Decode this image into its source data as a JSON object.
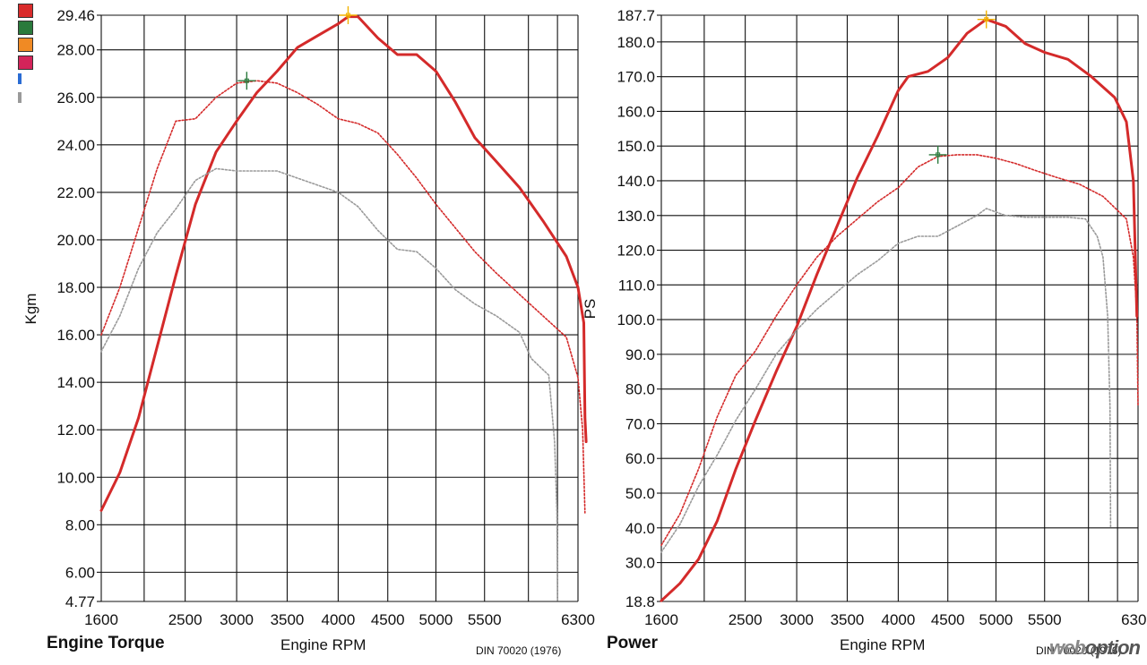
{
  "legend": [
    {
      "color": "#d92b2b"
    },
    {
      "color": "#2a7a3c"
    },
    {
      "color": "#f08a24"
    },
    {
      "color": "#d4245a"
    }
  ],
  "legend_mini": [
    {
      "color": "#2a6cd4"
    },
    {
      "color": "#9a9a9a"
    }
  ],
  "captions": {
    "torque": "Engine Torque",
    "power": "Power",
    "rpm_left": "Engine RPM",
    "rpm_right": "Engine RPM",
    "din_left": "DIN 70020 (1976)",
    "din_right": "DIN 70020 (1976)"
  },
  "watermark": {
    "a": "web",
    "b": "option"
  },
  "chart_data": [
    {
      "type": "line",
      "ylabel": "Kgm",
      "xlabel": "Engine RPM",
      "xlim": [
        1600,
        6300
      ],
      "ylim": [
        4.77,
        29.46
      ],
      "x_ticks": [
        1600,
        2500,
        3000,
        3500,
        4000,
        4500,
        5000,
        5500,
        6300
      ],
      "y_ticks": [
        {
          "v": 29.46,
          "label": "29.46"
        },
        {
          "v": 28.0,
          "label": "28.00"
        },
        {
          "v": 26.0,
          "label": "26.00"
        },
        {
          "v": 24.0,
          "label": "24.00"
        },
        {
          "v": 22.0,
          "label": "22.00"
        },
        {
          "v": 20.0,
          "label": "20.00"
        },
        {
          "v": 18.0,
          "label": "18.00"
        },
        {
          "v": 16.0,
          "label": "16.00"
        },
        {
          "v": 14.0,
          "label": "14.00"
        },
        {
          "v": 12.0,
          "label": "12.00"
        },
        {
          "v": 10.0,
          "label": "10.00"
        },
        {
          "v": 8.0,
          "label": "8.00"
        },
        {
          "v": 6.0,
          "label": "6.00"
        },
        {
          "v": 4.77,
          "label": "4.77"
        }
      ],
      "grid": true,
      "series": [
        {
          "style": "solid",
          "color": "#d42a2a",
          "points": [
            [
              1600,
              8.6
            ],
            [
              1800,
              10.2
            ],
            [
              2000,
              12.5
            ],
            [
              2200,
              15.5
            ],
            [
              2400,
              18.5
            ],
            [
              2600,
              21.5
            ],
            [
              2800,
              23.7
            ],
            [
              3000,
              25.0
            ],
            [
              3200,
              26.2
            ],
            [
              3400,
              27.1
            ],
            [
              3600,
              28.1
            ],
            [
              3800,
              28.6
            ],
            [
              4000,
              29.1
            ],
            [
              4100,
              29.4
            ],
            [
              4200,
              29.4
            ],
            [
              4400,
              28.5
            ],
            [
              4600,
              27.8
            ],
            [
              4800,
              27.8
            ],
            [
              5000,
              27.1
            ],
            [
              5200,
              25.8
            ],
            [
              5400,
              24.3
            ],
            [
              5600,
              23.3
            ],
            [
              5800,
              22.2
            ],
            [
              6000,
              20.8
            ],
            [
              6200,
              19.3
            ],
            [
              6300,
              18.0
            ],
            [
              6350,
              16.5
            ],
            [
              6360,
              12.5
            ],
            [
              6370,
              11.5
            ]
          ]
        },
        {
          "style": "dotted",
          "color": "#d42a2a",
          "points": [
            [
              1600,
              16.0
            ],
            [
              1800,
              18.0
            ],
            [
              2000,
              20.5
            ],
            [
              2200,
              23.0
            ],
            [
              2400,
              25.0
            ],
            [
              2600,
              25.1
            ],
            [
              2800,
              26.0
            ],
            [
              3000,
              26.6
            ],
            [
              3200,
              26.7
            ],
            [
              3400,
              26.6
            ],
            [
              3600,
              26.2
            ],
            [
              3800,
              25.7
            ],
            [
              4000,
              25.1
            ],
            [
              4200,
              24.9
            ],
            [
              4400,
              24.5
            ],
            [
              4600,
              23.6
            ],
            [
              4800,
              22.6
            ],
            [
              5000,
              21.5
            ],
            [
              5200,
              20.5
            ],
            [
              5400,
              19.5
            ],
            [
              5600,
              18.6
            ],
            [
              5800,
              17.7
            ],
            [
              6000,
              16.8
            ],
            [
              6200,
              15.9
            ],
            [
              6300,
              14.2
            ],
            [
              6340,
              12.0
            ],
            [
              6360,
              8.5
            ]
          ]
        },
        {
          "style": "dotted",
          "color": "#9a9a9a",
          "points": [
            [
              1600,
              15.3
            ],
            [
              1800,
              16.8
            ],
            [
              2000,
              18.8
            ],
            [
              2200,
              20.3
            ],
            [
              2400,
              21.3
            ],
            [
              2600,
              22.5
            ],
            [
              2800,
              23.0
            ],
            [
              3000,
              22.9
            ],
            [
              3200,
              22.9
            ],
            [
              3400,
              22.9
            ],
            [
              3600,
              22.6
            ],
            [
              3800,
              22.3
            ],
            [
              4000,
              22.0
            ],
            [
              4200,
              21.4
            ],
            [
              4400,
              20.4
            ],
            [
              4600,
              19.6
            ],
            [
              4800,
              19.5
            ],
            [
              5000,
              18.8
            ],
            [
              5200,
              17.9
            ],
            [
              5400,
              17.3
            ],
            [
              5600,
              16.8
            ],
            [
              5800,
              16.1
            ],
            [
              5900,
              15.0
            ],
            [
              6050,
              14.3
            ],
            [
              6100,
              11.5
            ],
            [
              6120,
              8.5
            ],
            [
              6125,
              4.8
            ]
          ]
        }
      ],
      "markers": [
        {
          "x": 3100,
          "y": 26.7,
          "color": "#2a7a3c"
        },
        {
          "x": 4100,
          "y": 29.46,
          "color": "#f2b400"
        }
      ]
    },
    {
      "type": "line",
      "ylabel": "PS",
      "xlabel": "Engine RPM",
      "xlim": [
        1600,
        6300
      ],
      "ylim": [
        18.8,
        187.7
      ],
      "x_ticks": [
        1600,
        2500,
        3000,
        3500,
        4000,
        4500,
        5000,
        5500,
        6300
      ],
      "y_ticks": [
        {
          "v": 187.7,
          "label": "187.7"
        },
        {
          "v": 180.0,
          "label": "180.0"
        },
        {
          "v": 170.0,
          "label": "170.0"
        },
        {
          "v": 160.0,
          "label": "160.0"
        },
        {
          "v": 150.0,
          "label": "150.0"
        },
        {
          "v": 140.0,
          "label": "140.0"
        },
        {
          "v": 130.0,
          "label": "130.0"
        },
        {
          "v": 120.0,
          "label": "120.0"
        },
        {
          "v": 110.0,
          "label": "110.0"
        },
        {
          "v": 100.0,
          "label": "100.0"
        },
        {
          "v": 90.0,
          "label": "90.0"
        },
        {
          "v": 80.0,
          "label": "80.0"
        },
        {
          "v": 70.0,
          "label": "70.0"
        },
        {
          "v": 60.0,
          "label": "60.0"
        },
        {
          "v": 50.0,
          "label": "50.0"
        },
        {
          "v": 40.0,
          "label": "40.0"
        },
        {
          "v": 30.0,
          "label": "30.0"
        },
        {
          "v": 18.8,
          "label": "18.8"
        }
      ],
      "grid": true,
      "series": [
        {
          "style": "solid",
          "color": "#d42a2a",
          "points": [
            [
              1600,
              19.0
            ],
            [
              1800,
              24.0
            ],
            [
              2000,
              31.0
            ],
            [
              2200,
              42.0
            ],
            [
              2400,
              57.0
            ],
            [
              2600,
              71.0
            ],
            [
              2800,
              85.0
            ],
            [
              3000,
              98.0
            ],
            [
              3200,
              113.0
            ],
            [
              3400,
              127.0
            ],
            [
              3600,
              141.0
            ],
            [
              3800,
              153.0
            ],
            [
              4000,
              166.0
            ],
            [
              4100,
              170.0
            ],
            [
              4300,
              171.5
            ],
            [
              4500,
              175.5
            ],
            [
              4700,
              182.5
            ],
            [
              4900,
              186.5
            ],
            [
              5100,
              184.5
            ],
            [
              5300,
              179.5
            ],
            [
              5500,
              177.0
            ],
            [
              5700,
              175.0
            ],
            [
              5900,
              170.0
            ],
            [
              6100,
              164.0
            ],
            [
              6200,
              157.0
            ],
            [
              6260,
              140.0
            ],
            [
              6290,
              101.0
            ]
          ]
        },
        {
          "style": "dotted",
          "color": "#d42a2a",
          "points": [
            [
              1600,
              35.0
            ],
            [
              1800,
              44.0
            ],
            [
              2000,
              57.0
            ],
            [
              2200,
              72.0
            ],
            [
              2400,
              84.0
            ],
            [
              2600,
              91.0
            ],
            [
              2800,
              101.0
            ],
            [
              3000,
              110.0
            ],
            [
              3200,
              118.0
            ],
            [
              3400,
              124.0
            ],
            [
              3600,
              129.0
            ],
            [
              3800,
              134.0
            ],
            [
              4000,
              138.0
            ],
            [
              4200,
              144.0
            ],
            [
              4400,
              147.0
            ],
            [
              4600,
              147.5
            ],
            [
              4800,
              147.5
            ],
            [
              5000,
              146.5
            ],
            [
              5200,
              145.0
            ],
            [
              5400,
              143.0
            ],
            [
              5600,
              141.0
            ],
            [
              5800,
              139.0
            ],
            [
              6000,
              135.5
            ],
            [
              6200,
              129.0
            ],
            [
              6260,
              118.0
            ],
            [
              6290,
              102.0
            ],
            [
              6300,
              75.0
            ]
          ]
        },
        {
          "style": "dotted",
          "color": "#9a9a9a",
          "points": [
            [
              1600,
              33.0
            ],
            [
              1800,
              41.0
            ],
            [
              2000,
              52.0
            ],
            [
              2200,
              61.0
            ],
            [
              2400,
              71.0
            ],
            [
              2600,
              80.0
            ],
            [
              2800,
              90.0
            ],
            [
              3000,
              97.0
            ],
            [
              3200,
              103.0
            ],
            [
              3400,
              108.0
            ],
            [
              3600,
              113.0
            ],
            [
              3800,
              117.0
            ],
            [
              4000,
              122.0
            ],
            [
              4200,
              124.0
            ],
            [
              4400,
              124.0
            ],
            [
              4600,
              127.0
            ],
            [
              4800,
              130.0
            ],
            [
              4900,
              132.0
            ],
            [
              5000,
              131.0
            ],
            [
              5100,
              130.0
            ],
            [
              5300,
              129.5
            ],
            [
              5500,
              129.5
            ],
            [
              5700,
              129.5
            ],
            [
              5850,
              129.0
            ],
            [
              5950,
              124.0
            ],
            [
              6000,
              118.0
            ],
            [
              6040,
              101.0
            ],
            [
              6060,
              75.0
            ],
            [
              6065,
              40.0
            ]
          ]
        }
      ],
      "markers": [
        {
          "x": 4400,
          "y": 147.5,
          "color": "#2a7a3c"
        },
        {
          "x": 4900,
          "y": 186.5,
          "color": "#f2b400"
        }
      ]
    }
  ]
}
